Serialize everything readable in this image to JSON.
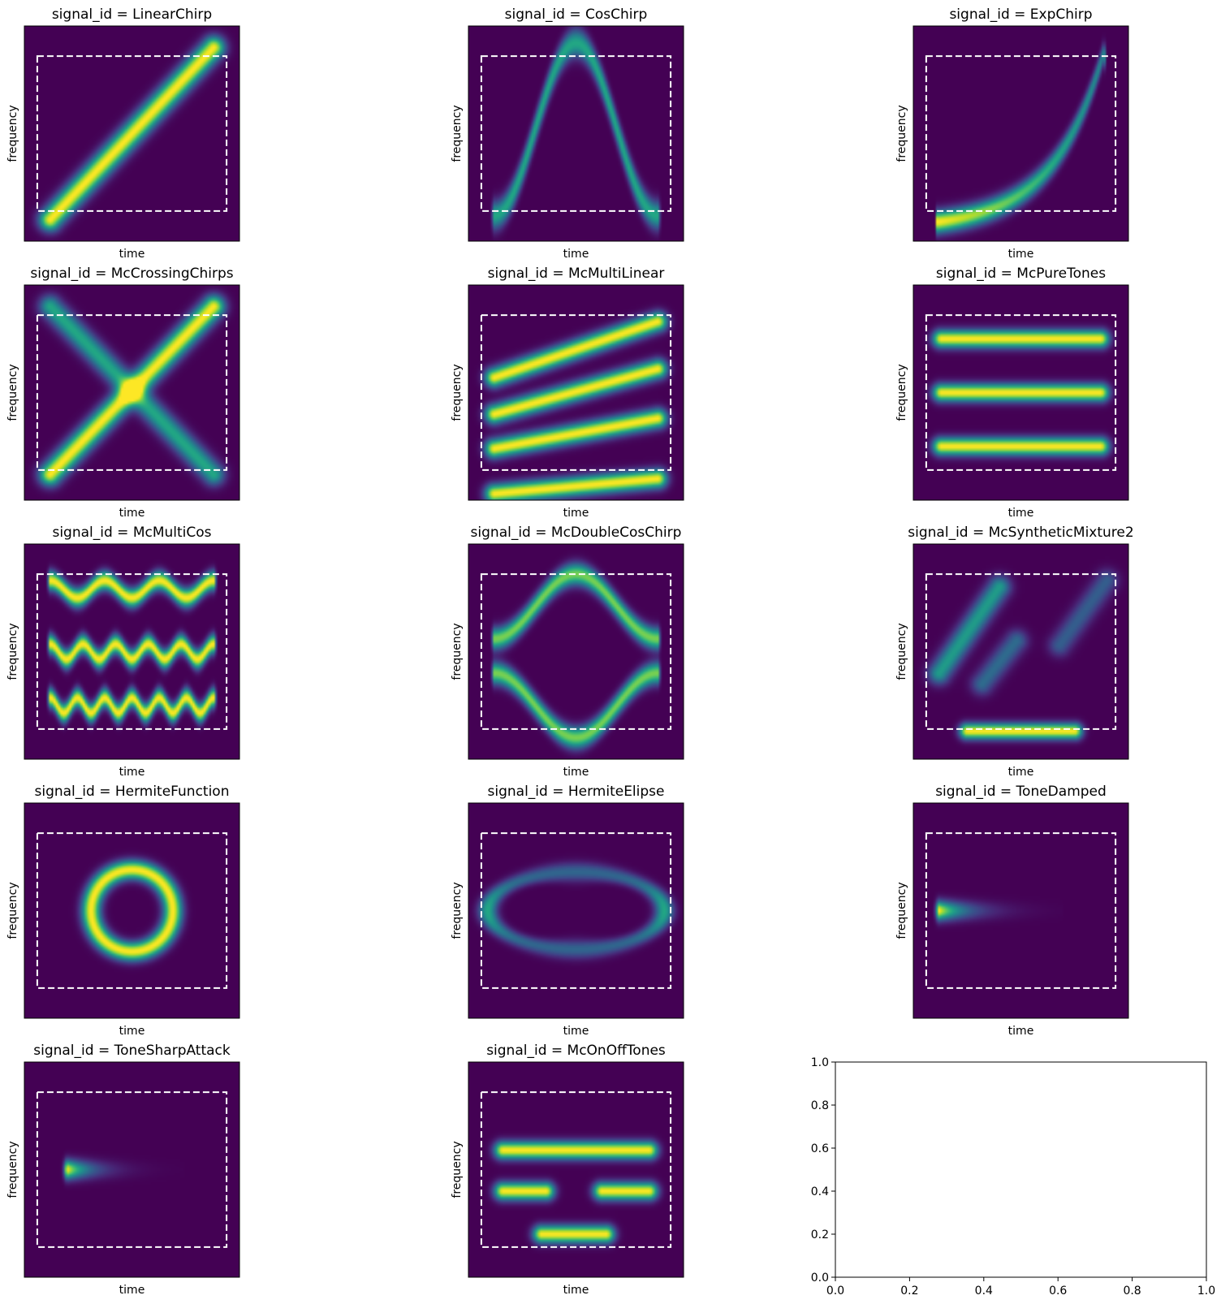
{
  "figure": {
    "background": "#ffffff",
    "colormap": "viridis",
    "panel_background": "#440154",
    "boundary_color": "#ffffff"
  },
  "chart_data": [
    {
      "type": "heatmap",
      "title": "signal_id = LinearChirp",
      "xlabel": "time",
      "ylabel": "frequency",
      "components": [
        {
          "kind": "line",
          "from": [
            0.12,
            0.1
          ],
          "to": [
            0.88,
            0.9
          ],
          "width": 0.035,
          "peak": 1.0
        }
      ]
    },
    {
      "type": "heatmap",
      "title": "signal_id = CosChirp",
      "xlabel": "time",
      "ylabel": "frequency",
      "components": [
        {
          "kind": "cos",
          "t": [
            0.12,
            0.88
          ],
          "center": 0.52,
          "amplitude": 0.4,
          "cycles": 1,
          "phase": 3.14159,
          "width": 0.045,
          "peak": 0.6
        }
      ]
    },
    {
      "type": "heatmap",
      "title": "signal_id = ExpChirp",
      "xlabel": "time",
      "ylabel": "frequency",
      "components": [
        {
          "kind": "exp",
          "t": [
            0.12,
            0.88
          ],
          "f": [
            0.09,
            0.86
          ],
          "rate": 3.2,
          "width": 0.035,
          "peak": 1.0
        }
      ]
    },
    {
      "type": "heatmap",
      "title": "signal_id = McCrossingChirps",
      "xlabel": "time",
      "ylabel": "frequency",
      "components": [
        {
          "kind": "line",
          "from": [
            0.12,
            0.12
          ],
          "to": [
            0.88,
            0.9
          ],
          "width": 0.035,
          "peak": 1.0
        },
        {
          "kind": "line",
          "from": [
            0.12,
            0.9
          ],
          "to": [
            0.88,
            0.12
          ],
          "width": 0.035,
          "peak": 0.6
        }
      ]
    },
    {
      "type": "heatmap",
      "title": "signal_id = McMultiLinear",
      "xlabel": "time",
      "ylabel": "frequency",
      "components": [
        {
          "kind": "line",
          "from": [
            0.12,
            0.03
          ],
          "to": [
            0.88,
            0.1
          ],
          "width": 0.03,
          "peak": 1.0
        },
        {
          "kind": "line",
          "from": [
            0.12,
            0.24
          ],
          "to": [
            0.88,
            0.38
          ],
          "width": 0.03,
          "peak": 1.0
        },
        {
          "kind": "line",
          "from": [
            0.12,
            0.4
          ],
          "to": [
            0.88,
            0.61
          ],
          "width": 0.03,
          "peak": 1.0
        },
        {
          "kind": "line",
          "from": [
            0.12,
            0.57
          ],
          "to": [
            0.88,
            0.83
          ],
          "width": 0.03,
          "peak": 1.0
        }
      ]
    },
    {
      "type": "heatmap",
      "title": "signal_id = McPureTones",
      "xlabel": "time",
      "ylabel": "frequency",
      "components": [
        {
          "kind": "line",
          "from": [
            0.13,
            0.25
          ],
          "to": [
            0.87,
            0.25
          ],
          "width": 0.028,
          "peak": 1.0
        },
        {
          "kind": "line",
          "from": [
            0.13,
            0.5
          ],
          "to": [
            0.87,
            0.5
          ],
          "width": 0.028,
          "peak": 1.0
        },
        {
          "kind": "line",
          "from": [
            0.13,
            0.75
          ],
          "to": [
            0.87,
            0.75
          ],
          "width": 0.028,
          "peak": 1.0
        }
      ]
    },
    {
      "type": "heatmap",
      "title": "signal_id = McMultiCos",
      "xlabel": "time",
      "ylabel": "frequency",
      "components": [
        {
          "kind": "cos",
          "t": [
            0.12,
            0.88
          ],
          "center": 0.25,
          "amplitude": 0.035,
          "cycles": 6,
          "phase": 0,
          "width": 0.03,
          "peak": 1.0
        },
        {
          "kind": "cos",
          "t": [
            0.12,
            0.88
          ],
          "center": 0.5,
          "amplitude": 0.035,
          "cycles": 5,
          "phase": 0,
          "width": 0.03,
          "peak": 1.0
        },
        {
          "kind": "cos",
          "t": [
            0.12,
            0.88
          ],
          "center": 0.79,
          "amplitude": 0.04,
          "cycles": 3,
          "phase": 0,
          "width": 0.03,
          "peak": 1.0
        }
      ]
    },
    {
      "type": "heatmap",
      "title": "signal_id = McDoubleCosChirp",
      "xlabel": "time",
      "ylabel": "frequency",
      "components": [
        {
          "kind": "cos",
          "t": [
            0.12,
            0.88
          ],
          "center": 0.25,
          "amplitude": 0.15,
          "cycles": 1,
          "phase": 0,
          "width": 0.035,
          "peak": 0.8
        },
        {
          "kind": "cos",
          "t": [
            0.12,
            0.88
          ],
          "center": 0.71,
          "amplitude": 0.15,
          "cycles": 1,
          "phase": 3.14159,
          "width": 0.035,
          "peak": 0.8
        }
      ]
    },
    {
      "type": "heatmap",
      "title": "signal_id = McSyntheticMixture2",
      "xlabel": "time",
      "ylabel": "frequency",
      "components": [
        {
          "kind": "line",
          "from": [
            0.12,
            0.4
          ],
          "to": [
            0.4,
            0.8
          ],
          "width": 0.035,
          "peak": 0.55
        },
        {
          "kind": "line",
          "from": [
            0.32,
            0.35
          ],
          "to": [
            0.48,
            0.55
          ],
          "width": 0.035,
          "peak": 0.35
        },
        {
          "kind": "line",
          "from": [
            0.68,
            0.53
          ],
          "to": [
            0.9,
            0.83
          ],
          "width": 0.035,
          "peak": 0.3
        },
        {
          "kind": "line",
          "from": [
            0.25,
            0.13
          ],
          "to": [
            0.75,
            0.13
          ],
          "width": 0.025,
          "peak": 1.0
        }
      ]
    },
    {
      "type": "heatmap",
      "title": "signal_id = HermiteFunction",
      "xlabel": "time",
      "ylabel": "frequency",
      "components": [
        {
          "kind": "ellipse",
          "center": [
            0.5,
            0.5
          ],
          "radii": [
            0.19,
            0.19
          ],
          "width": 0.03,
          "peak": 1.0
        }
      ]
    },
    {
      "type": "heatmap",
      "title": "signal_id = HermiteElipse",
      "xlabel": "time",
      "ylabel": "frequency",
      "components": [
        {
          "kind": "ellipse",
          "center": [
            0.5,
            0.5
          ],
          "radii": [
            0.41,
            0.18
          ],
          "width": 0.03,
          "peak": 0.6
        }
      ]
    },
    {
      "type": "heatmap",
      "title": "signal_id = ToneDamped",
      "xlabel": "time",
      "ylabel": "frequency",
      "components": [
        {
          "kind": "decay",
          "t": [
            0.12,
            0.7
          ],
          "f": 0.5,
          "width": 0.03,
          "peak": 1.0,
          "tau": 0.12
        }
      ]
    },
    {
      "type": "heatmap",
      "title": "signal_id = ToneSharpAttack",
      "xlabel": "time",
      "ylabel": "frequency",
      "components": [
        {
          "kind": "decay",
          "t": [
            0.2,
            0.75
          ],
          "f": 0.5,
          "width": 0.03,
          "peak": 1.0,
          "tau": 0.1
        }
      ]
    },
    {
      "type": "heatmap",
      "title": "signal_id = McOnOffTones",
      "xlabel": "time",
      "ylabel": "frequency",
      "components": [
        {
          "kind": "line",
          "from": [
            0.16,
            0.59
          ],
          "to": [
            0.84,
            0.59
          ],
          "width": 0.028,
          "peak": 1.0
        },
        {
          "kind": "line",
          "from": [
            0.16,
            0.4
          ],
          "to": [
            0.36,
            0.4
          ],
          "width": 0.028,
          "peak": 1.0
        },
        {
          "kind": "line",
          "from": [
            0.62,
            0.4
          ],
          "to": [
            0.84,
            0.4
          ],
          "width": 0.028,
          "peak": 1.0
        },
        {
          "kind": "line",
          "from": [
            0.34,
            0.2
          ],
          "to": [
            0.64,
            0.2
          ],
          "width": 0.028,
          "peak": 1.0
        }
      ]
    },
    {
      "type": "line",
      "title": "",
      "xlabel": "",
      "ylabel": "",
      "xlim": [
        0.0,
        1.0
      ],
      "ylim": [
        0.0,
        1.0
      ],
      "xticks": [
        "0.0",
        "0.2",
        "0.4",
        "0.6",
        "0.8",
        "1.0"
      ],
      "yticks": [
        "0.0",
        "0.2",
        "0.4",
        "0.6",
        "0.8",
        "1.0"
      ],
      "series": []
    }
  ]
}
